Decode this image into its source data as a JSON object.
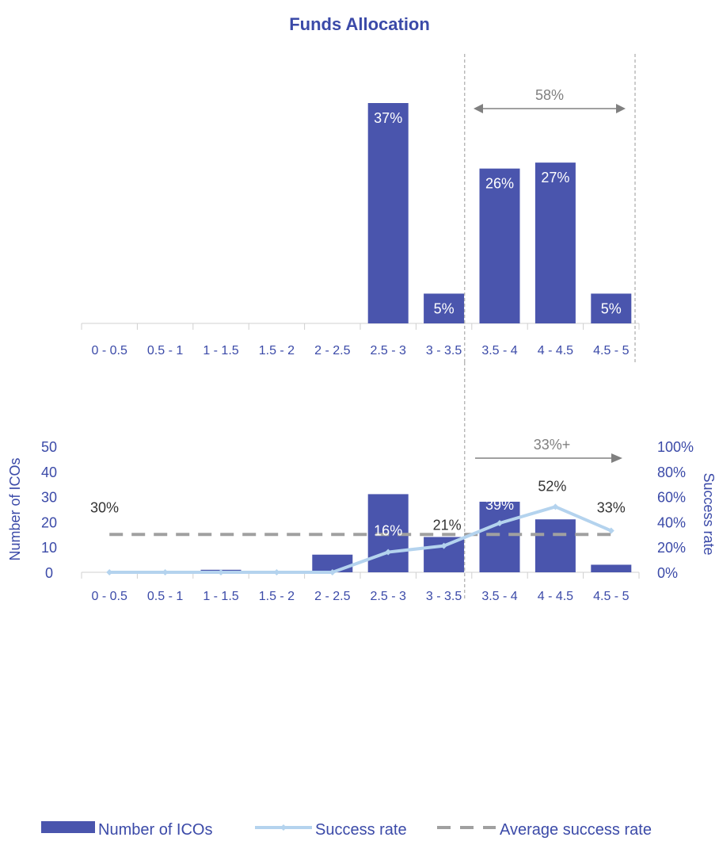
{
  "title": "Funds Allocation",
  "colors": {
    "bar": "#4a55ad",
    "line": "#b4d3ee",
    "avg": "#a0a0a0",
    "title": "#3b4aa8",
    "axis_text": "#3b4aa8",
    "muted_text": "#808080",
    "annotation": "#333333",
    "bar_label": "#ffffff"
  },
  "categories": [
    "0 - 0.5",
    "0.5 - 1",
    "1 - 1.5",
    "1.5 - 2",
    "2 - 2.5",
    "2.5 - 3",
    "3 - 3.5",
    "3.5 - 4",
    "4 - 4.5",
    "4.5 - 5"
  ],
  "chart_data": [
    {
      "type": "bar",
      "title": "Funds Allocation",
      "categories": [
        "0 - 0.5",
        "0.5 - 1",
        "1 - 1.5",
        "1.5 - 2",
        "2 - 2.5",
        "2.5 - 3",
        "3 - 3.5",
        "3.5 - 4",
        "4 - 4.5",
        "4.5 - 5"
      ],
      "values": [
        0,
        0,
        0,
        0,
        0,
        37,
        5,
        26,
        27,
        5
      ],
      "data_labels": [
        "",
        "",
        "",
        "",
        "",
        "37%",
        "5%",
        "26%",
        "27%",
        "5%"
      ],
      "ylim": [
        0,
        40
      ],
      "annotation": {
        "text": "58%",
        "from": "3.5 - 4",
        "to": "4.5 - 5",
        "arrow": "both"
      },
      "grid": false
    },
    {
      "type": "bar",
      "categories": [
        "0 - 0.5",
        "0.5 - 1",
        "1 - 1.5",
        "1.5 - 2",
        "2 - 2.5",
        "2.5 - 3",
        "3 - 3.5",
        "3.5 - 4",
        "4 - 4.5",
        "4.5 - 5"
      ],
      "series": [
        {
          "name": "Number of ICOs",
          "type": "bar",
          "axis": "left",
          "values": [
            0,
            0,
            1,
            0,
            7,
            31,
            14,
            28,
            21,
            3
          ]
        },
        {
          "name": "Success rate",
          "type": "line",
          "axis": "right",
          "values": [
            0,
            0,
            0,
            0,
            0,
            16,
            21,
            39,
            52,
            33
          ],
          "data_labels": [
            "",
            "",
            "",
            "",
            "",
            "16%",
            "21%",
            "39%",
            "52%",
            "33%"
          ]
        },
        {
          "name": "Average success rate",
          "type": "line",
          "axis": "right",
          "style": "dashed",
          "values": [
            30,
            30,
            30,
            30,
            30,
            30,
            30,
            30,
            30,
            30
          ],
          "data_label": "30%"
        }
      ],
      "ylabel": "Number of ICOs",
      "ylim": [
        0,
        50
      ],
      "yticks": [
        "0",
        "10",
        "20",
        "30",
        "40",
        "50"
      ],
      "y2label": "Success rate",
      "y2lim": [
        0,
        100
      ],
      "y2ticks": [
        "0%",
        "20%",
        "40%",
        "60%",
        "80%",
        "100%"
      ],
      "annotation": {
        "text": "33%+",
        "from": "3.5 - 4",
        "arrow": "right"
      },
      "legend": [
        "Number of ICOs",
        "Success rate",
        "Average success rate"
      ],
      "legend_position": "bottom",
      "grid": false
    }
  ]
}
